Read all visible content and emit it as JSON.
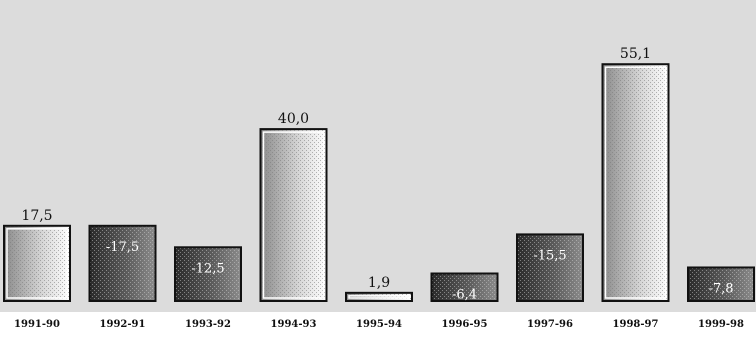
{
  "colors": {
    "plot_background": "#dcdcdc",
    "positive_fill_light": "#ffffff",
    "positive_fill_dark": "#8a8a8a",
    "negative_fill_light": "#888888",
    "negative_fill_dark": "#1f1f1f",
    "bar_outline": "#111111"
  },
  "chart_data": {
    "type": "bar",
    "title": "",
    "xlabel": "",
    "ylabel": "",
    "categories": [
      "1991-90",
      "1992-91",
      "1993-92",
      "1994-93",
      "1995-94",
      "1996-95",
      "1997-96",
      "1998-97",
      "1999-98"
    ],
    "values": [
      17.5,
      -17.5,
      -12.5,
      40.0,
      1.9,
      -6.4,
      -15.5,
      55.1,
      -7.8
    ],
    "data_labels": [
      "17,5",
      "-17,5",
      "-12,5",
      "40,0",
      "1,9",
      "-6,4",
      "-15,5",
      "55,1",
      "-7,8"
    ],
    "value_axis": "magnitude",
    "ylim": [
      0,
      60
    ],
    "grid": false,
    "legend": "none"
  }
}
